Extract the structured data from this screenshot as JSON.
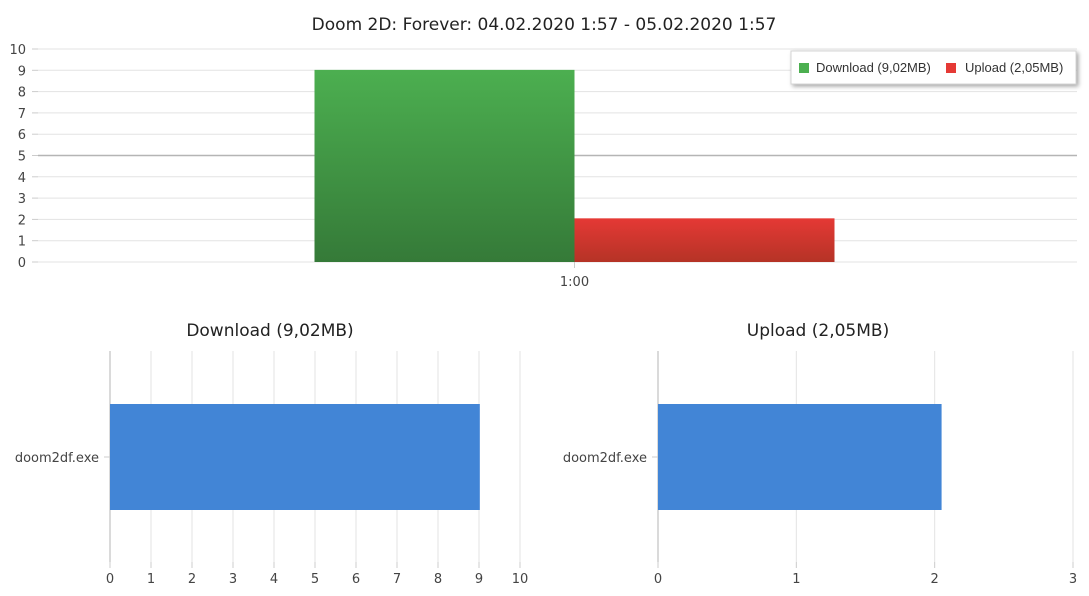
{
  "chart_data": [
    {
      "type": "bar",
      "title": "Doom 2D: Forever: 04.02.2020 1:57 - 05.02.2020 1:57",
      "categories": [
        "1:00"
      ],
      "series": [
        {
          "name": "Download (9,02MB)",
          "values": [
            9.02
          ],
          "color": "#4caf50",
          "color_dark": "#357a38"
        },
        {
          "name": "Upload (2,05MB)",
          "values": [
            2.05
          ],
          "color": "#e53935",
          "color_dark": "#b53326"
        }
      ],
      "ylim": [
        0,
        10
      ],
      "yticks": [
        0,
        1,
        2,
        3,
        4,
        5,
        6,
        7,
        8,
        9,
        10
      ],
      "grid": true,
      "legend_position": "top-right"
    },
    {
      "type": "bar",
      "orientation": "horizontal",
      "title": "Download (9,02MB)",
      "categories": [
        "doom2df.exe"
      ],
      "values": [
        9.02
      ],
      "color": "#4285d6",
      "xlim": [
        0,
        10
      ],
      "xticks": [
        0,
        1,
        2,
        3,
        4,
        5,
        6,
        7,
        8,
        9,
        10
      ],
      "grid": true
    },
    {
      "type": "bar",
      "orientation": "horizontal",
      "title": "Upload (2,05MB)",
      "categories": [
        "doom2df.exe"
      ],
      "values": [
        2.05
      ],
      "color": "#4285d6",
      "xlim": [
        0,
        3
      ],
      "xticks": [
        0,
        1,
        2,
        3
      ],
      "grid": true
    }
  ]
}
